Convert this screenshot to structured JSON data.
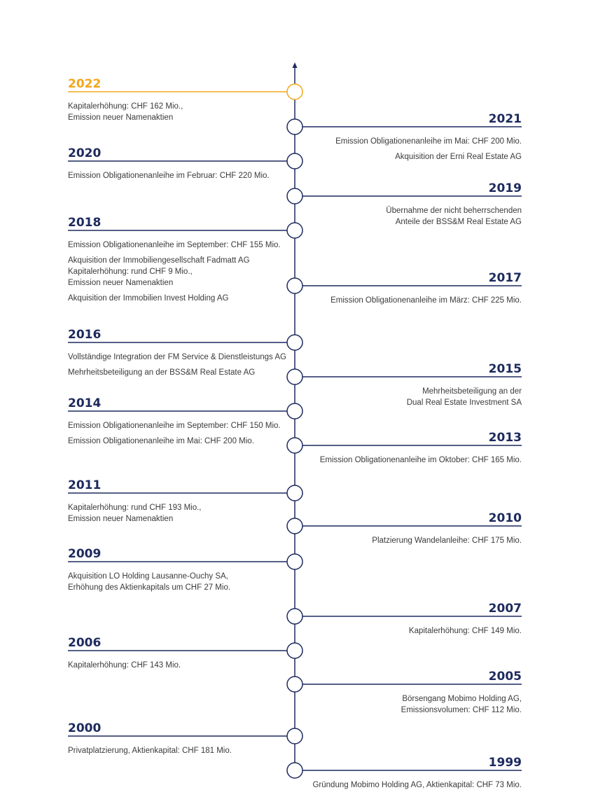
{
  "events": [
    {
      "year": "2022",
      "side": "left",
      "items": [
        [
          "Kapitalerhöhung: CHF 162 Mio.,",
          "Emission neuer Namenaktien"
        ]
      ]
    },
    {
      "year": "2021",
      "side": "right",
      "items": [
        [
          "Emission Obligationenanleihe im Mai: CHF 200 Mio."
        ],
        [
          "Akquisition der Erni Real Estate AG"
        ]
      ]
    },
    {
      "year": "2020",
      "side": "left",
      "items": [
        [
          "Emission Obligationenanleihe im Februar: CHF 220 Mio."
        ]
      ]
    },
    {
      "year": "2019",
      "side": "right",
      "items": [
        [
          "Übernahme der nicht beherrschenden",
          "Anteile der BSS&M Real Estate AG"
        ]
      ]
    },
    {
      "year": "2018",
      "side": "left",
      "items": [
        [
          "Emission Obligationenanleihe im September: CHF 155 Mio."
        ],
        [
          "Akquisition der Immobiliengesellschaft Fadmatt AG",
          "Kapitalerhöhung: rund CHF 9 Mio.,",
          "Emission neuer Namenaktien"
        ],
        [
          "Akquisition der Immobilien Invest Holding AG"
        ]
      ]
    },
    {
      "year": "2017",
      "side": "right",
      "items": [
        [
          "Emission Obligationenanleihe im März: CHF 225 Mio."
        ]
      ]
    },
    {
      "year": "2016",
      "side": "left",
      "items": [
        [
          "Vollständige Integration der FM Service & Dienstleistungs AG"
        ],
        [
          "Mehrheitsbeteiligung an der BSS&M Real Estate AG"
        ]
      ]
    },
    {
      "year": "2015",
      "side": "right",
      "items": [
        [
          "Mehrheitsbeteiligung an der",
          "Dual Real Estate Investment SA"
        ]
      ]
    },
    {
      "year": "2014",
      "side": "left",
      "items": [
        [
          "Emission Obligationenanleihe im September: CHF 150 Mio."
        ],
        [
          "Emission Obligationenanleihe im Mai: CHF 200 Mio."
        ]
      ]
    },
    {
      "year": "2013",
      "side": "right",
      "items": [
        [
          "Emission Obligationenanleihe im Oktober: CHF 165 Mio."
        ]
      ]
    },
    {
      "year": "2011",
      "side": "left",
      "items": [
        [
          "Kapitalerhöhung: rund CHF 193 Mio.,",
          "Emission neuer Namenaktien"
        ]
      ]
    },
    {
      "year": "2010",
      "side": "right",
      "items": [
        [
          "Platzierung Wandelanleihe: CHF 175 Mio."
        ]
      ]
    },
    {
      "year": "2009",
      "side": "left",
      "items": [
        [
          "Akquisition LO Holding Lausanne-Ouchy SA,",
          "Erhöhung des Aktienkapitals um CHF 27 Mio."
        ]
      ]
    },
    {
      "year": "2007",
      "side": "right",
      "items": [
        [
          "Kapitalerhöhung: CHF 149 Mio."
        ]
      ]
    },
    {
      "year": "2006",
      "side": "left",
      "items": [
        [
          "Kapitalerhöhung: CHF 143 Mio."
        ]
      ]
    },
    {
      "year": "2005",
      "side": "right",
      "items": [
        [
          "Börsengang Mobimo Holding AG,",
          "Emissionsvolumen: CHF 112 Mio."
        ]
      ]
    },
    {
      "year": "2000",
      "side": "left",
      "items": [
        [
          "Privatplatzierung, Aktienkapital: CHF 181 Mio."
        ]
      ]
    },
    {
      "year": "1999",
      "side": "right",
      "items": [
        [
          "Gründung Mobimo Holding AG, Aktienkapital: CHF 73 Mio."
        ]
      ]
    }
  ]
}
